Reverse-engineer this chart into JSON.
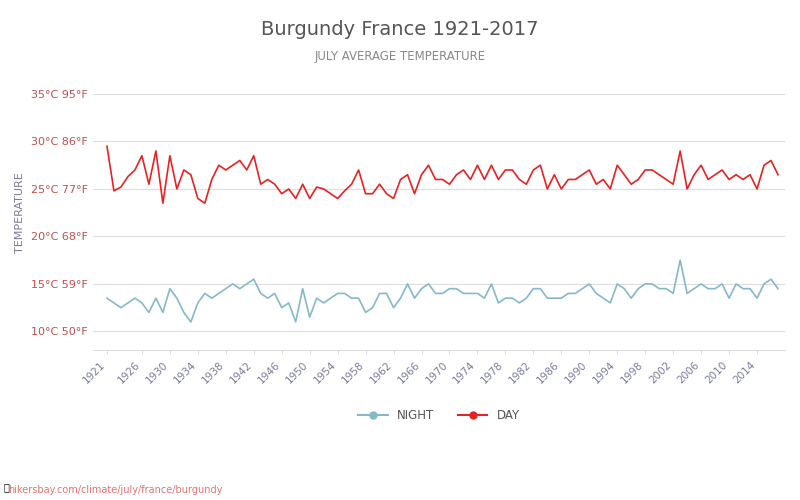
{
  "title": "Burgundy France 1921-2017",
  "subtitle": "JULY AVERAGE TEMPERATURE",
  "ylabel": "TEMPERATURE",
  "watermark": "hikersbay.com/climate/july/france/burgundy",
  "years": [
    1921,
    1922,
    1923,
    1924,
    1925,
    1926,
    1927,
    1928,
    1929,
    1930,
    1931,
    1932,
    1933,
    1934,
    1935,
    1936,
    1937,
    1938,
    1939,
    1940,
    1941,
    1942,
    1943,
    1944,
    1945,
    1946,
    1947,
    1948,
    1949,
    1950,
    1951,
    1952,
    1953,
    1954,
    1955,
    1956,
    1957,
    1958,
    1959,
    1960,
    1961,
    1962,
    1963,
    1964,
    1965,
    1966,
    1967,
    1968,
    1969,
    1970,
    1971,
    1972,
    1973,
    1974,
    1975,
    1976,
    1977,
    1978,
    1979,
    1980,
    1981,
    1982,
    1983,
    1984,
    1985,
    1986,
    1987,
    1988,
    1989,
    1990,
    1991,
    1992,
    1993,
    1994,
    1995,
    1996,
    1997,
    1998,
    1999,
    2000,
    2001,
    2002,
    2003,
    2004,
    2005,
    2006,
    2007,
    2008,
    2009,
    2010,
    2011,
    2012,
    2013,
    2014,
    2015,
    2016,
    2017
  ],
  "day_temps": [
    29.5,
    24.8,
    25.2,
    26.3,
    27.0,
    28.5,
    25.5,
    29.0,
    23.5,
    28.5,
    25.0,
    27.0,
    26.5,
    24.0,
    23.5,
    26.0,
    27.5,
    27.0,
    27.5,
    28.0,
    27.0,
    28.5,
    25.5,
    26.0,
    25.5,
    24.5,
    25.0,
    24.0,
    25.5,
    24.0,
    25.2,
    25.0,
    24.5,
    24.0,
    24.8,
    25.5,
    27.0,
    24.5,
    24.5,
    25.5,
    24.5,
    24.0,
    26.0,
    26.5,
    24.5,
    26.5,
    27.5,
    26.0,
    26.0,
    25.5,
    26.5,
    27.0,
    26.0,
    27.5,
    26.0,
    27.5,
    26.0,
    27.0,
    27.0,
    26.0,
    25.5,
    27.0,
    27.5,
    25.0,
    26.5,
    25.0,
    26.0,
    26.0,
    26.5,
    27.0,
    25.5,
    26.0,
    25.0,
    27.5,
    26.5,
    25.5,
    26.0,
    27.0,
    27.0,
    26.5,
    26.0,
    25.5,
    29.0,
    25.0,
    26.5,
    27.5,
    26.0,
    26.5,
    27.0,
    26.0,
    26.5,
    26.0,
    26.5,
    25.0,
    27.5,
    28.0,
    26.5
  ],
  "night_temps": [
    13.5,
    13.0,
    12.5,
    13.0,
    13.5,
    13.0,
    12.0,
    13.5,
    12.0,
    14.5,
    13.5,
    12.0,
    11.0,
    13.0,
    14.0,
    13.5,
    14.0,
    14.5,
    15.0,
    14.5,
    15.0,
    15.5,
    14.0,
    13.5,
    14.0,
    12.5,
    13.0,
    11.0,
    14.5,
    11.5,
    13.5,
    13.0,
    13.5,
    14.0,
    14.0,
    13.5,
    13.5,
    12.0,
    12.5,
    14.0,
    14.0,
    12.5,
    13.5,
    15.0,
    13.5,
    14.5,
    15.0,
    14.0,
    14.0,
    14.5,
    14.5,
    14.0,
    14.0,
    14.0,
    13.5,
    15.0,
    13.0,
    13.5,
    13.5,
    13.0,
    13.5,
    14.5,
    14.5,
    13.5,
    13.5,
    13.5,
    14.0,
    14.0,
    14.5,
    15.0,
    14.0,
    13.5,
    13.0,
    15.0,
    14.5,
    13.5,
    14.5,
    15.0,
    15.0,
    14.5,
    14.5,
    14.0,
    17.5,
    14.0,
    14.5,
    15.0,
    14.5,
    14.5,
    15.0,
    13.5,
    15.0,
    14.5,
    14.5,
    13.5,
    15.0,
    15.5,
    14.5
  ],
  "yticks_c": [
    10,
    15,
    20,
    25,
    30,
    35
  ],
  "yticks_f": [
    50,
    59,
    68,
    77,
    86,
    95
  ],
  "ytick_labels": [
    "10°C 50°F",
    "15°C 59°F",
    "20°C 68°F",
    "25°C 77°F",
    "30°C 86°F",
    "35°C 95°F"
  ],
  "day_color": "#e82222",
  "night_color": "#85b8c8",
  "title_color": "#555555",
  "subtitle_color": "#888888",
  "ylabel_color": "#7a7a9a",
  "tick_label_color": "#c0504d",
  "xtick_color": "#7a7a9a",
  "grid_color": "#dddddd",
  "background_color": "#ffffff",
  "ylim_min": 8,
  "ylim_max": 37,
  "xtick_years": [
    1921,
    1926,
    1930,
    1934,
    1938,
    1942,
    1946,
    1950,
    1954,
    1958,
    1962,
    1966,
    1970,
    1974,
    1978,
    1982,
    1986,
    1990,
    1994,
    1998,
    2002,
    2006,
    2010,
    2014
  ]
}
